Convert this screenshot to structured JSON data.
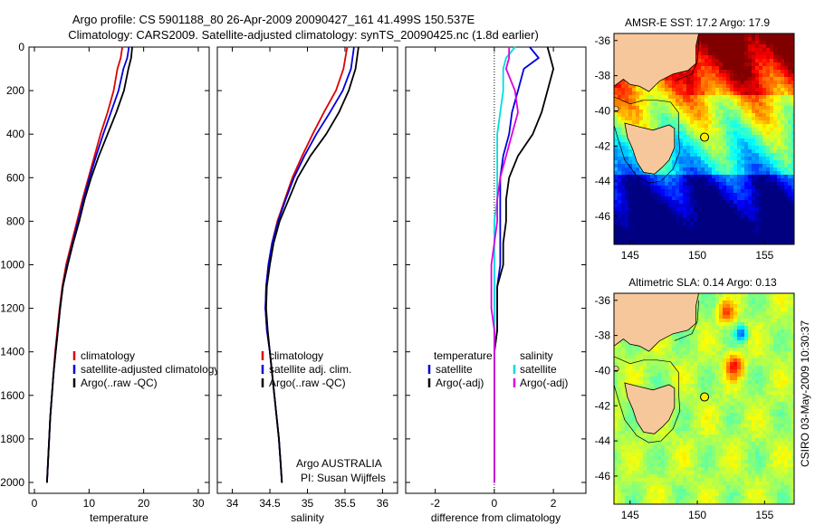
{
  "header": {
    "line1": "Argo profile: CS 5901188_80 26-Apr-2009 20090427_161 41.499S 150.537E",
    "line2": "Climatology: CARS2009. Satellite-adjusted climatology: synTS_20090425.nc (1.8d earlier)"
  },
  "side_text": "CSIRO 03-May-2009 10:30:37",
  "chart_data": [
    {
      "id": "temperature",
      "type": "line",
      "xlabel": "temperature",
      "xlim": [
        -1,
        32
      ],
      "ylim": [
        2050,
        0
      ],
      "xticks": [
        0,
        10,
        20,
        30
      ],
      "yticks": [
        0,
        200,
        400,
        600,
        800,
        1000,
        1200,
        1400,
        1600,
        1800,
        2000
      ],
      "legend": {
        "placement": "lower-middle",
        "entries": [
          "climatology",
          "satellite-adjusted climatology",
          "Argo(..raw -QC)"
        ]
      },
      "series": [
        {
          "name": "climatology",
          "color": "#dd0000",
          "points": [
            [
              16.1,
              0
            ],
            [
              15.8,
              50
            ],
            [
              15.2,
              100
            ],
            [
              14.5,
              200
            ],
            [
              13.4,
              300
            ],
            [
              12.1,
              400
            ],
            [
              11.0,
              500
            ],
            [
              9.9,
              600
            ],
            [
              8.8,
              700
            ],
            [
              7.8,
              800
            ],
            [
              6.8,
              900
            ],
            [
              5.8,
              1000
            ],
            [
              5.1,
              1100
            ],
            [
              4.6,
              1200
            ],
            [
              4.2,
              1300
            ],
            [
              3.8,
              1400
            ],
            [
              3.5,
              1500
            ],
            [
              3.2,
              1600
            ],
            [
              2.9,
              1700
            ],
            [
              2.7,
              1800
            ],
            [
              2.5,
              1900
            ],
            [
              2.3,
              2000
            ]
          ]
        },
        {
          "name": "satellite-adjusted climatology",
          "color": "#0000dd",
          "points": [
            [
              17.3,
              0
            ],
            [
              17.0,
              50
            ],
            [
              16.3,
              100
            ],
            [
              15.4,
              200
            ],
            [
              14.0,
              300
            ],
            [
              12.6,
              400
            ],
            [
              11.3,
              500
            ],
            [
              10.1,
              600
            ],
            [
              9.0,
              700
            ],
            [
              8.0,
              800
            ],
            [
              7.0,
              900
            ],
            [
              6.0,
              1000
            ],
            [
              5.2,
              1100
            ],
            [
              4.7,
              1200
            ],
            [
              4.3,
              1300
            ],
            [
              3.9,
              1400
            ],
            [
              3.5,
              1500
            ],
            [
              3.2,
              1600
            ],
            [
              2.9,
              1700
            ],
            [
              2.7,
              1800
            ],
            [
              2.5,
              1900
            ],
            [
              2.3,
              2000
            ]
          ]
        },
        {
          "name": "Argo(..raw -QC)",
          "color": "#000000",
          "points": [
            [
              17.9,
              0
            ],
            [
              17.7,
              50
            ],
            [
              17.2,
              100
            ],
            [
              16.4,
              200
            ],
            [
              15.0,
              300
            ],
            [
              13.4,
              400
            ],
            [
              11.8,
              500
            ],
            [
              10.4,
              600
            ],
            [
              9.2,
              700
            ],
            [
              8.2,
              800
            ],
            [
              7.1,
              900
            ],
            [
              6.1,
              1000
            ],
            [
              5.2,
              1100
            ],
            [
              4.7,
              1200
            ],
            [
              4.3,
              1300
            ],
            [
              3.9,
              1400
            ],
            [
              3.5,
              1500
            ],
            [
              3.2,
              1600
            ],
            [
              2.9,
              1700
            ],
            [
              2.7,
              1800
            ],
            [
              2.5,
              1900
            ],
            [
              2.3,
              2000
            ]
          ]
        }
      ]
    },
    {
      "id": "salinity",
      "type": "line",
      "xlabel": "salinity",
      "xlim": [
        33.8,
        36.2
      ],
      "ylim": [
        2050,
        0
      ],
      "xticks": [
        34,
        34.5,
        35,
        35.5,
        36
      ],
      "yticks": [
        0,
        200,
        400,
        600,
        800,
        1000,
        1200,
        1400,
        1600,
        1800,
        2000
      ],
      "legend": {
        "placement": "lower-middle",
        "entries": [
          "climatology",
          "satellite adj. clim.",
          "Argo(..raw -QC)"
        ]
      },
      "annotation": {
        "line1": "Argo AUSTRALIA",
        "line2": "PI: Susan Wijffels"
      },
      "series": [
        {
          "name": "climatology",
          "color": "#dd0000",
          "points": [
            [
              35.53,
              0
            ],
            [
              35.48,
              100
            ],
            [
              35.38,
              200
            ],
            [
              35.22,
              300
            ],
            [
              35.07,
              400
            ],
            [
              34.93,
              500
            ],
            [
              34.8,
              600
            ],
            [
              34.7,
              700
            ],
            [
              34.6,
              800
            ],
            [
              34.53,
              900
            ],
            [
              34.48,
              1000
            ],
            [
              34.45,
              1100
            ],
            [
              34.44,
              1200
            ],
            [
              34.46,
              1300
            ],
            [
              34.5,
              1400
            ],
            [
              34.53,
              1500
            ],
            [
              34.56,
              1600
            ],
            [
              34.59,
              1700
            ],
            [
              34.62,
              1800
            ],
            [
              34.64,
              1900
            ],
            [
              34.66,
              2000
            ]
          ]
        },
        {
          "name": "satellite adj. clim.",
          "color": "#0000dd",
          "points": [
            [
              35.62,
              0
            ],
            [
              35.58,
              100
            ],
            [
              35.47,
              200
            ],
            [
              35.3,
              300
            ],
            [
              35.12,
              400
            ],
            [
              34.96,
              500
            ],
            [
              34.82,
              600
            ],
            [
              34.71,
              700
            ],
            [
              34.61,
              800
            ],
            [
              34.53,
              900
            ],
            [
              34.48,
              1000
            ],
            [
              34.45,
              1100
            ],
            [
              34.44,
              1200
            ],
            [
              34.46,
              1300
            ],
            [
              34.5,
              1400
            ],
            [
              34.53,
              1500
            ],
            [
              34.56,
              1600
            ],
            [
              34.59,
              1700
            ],
            [
              34.62,
              1800
            ],
            [
              34.64,
              1900
            ],
            [
              34.66,
              2000
            ]
          ]
        },
        {
          "name": "Argo(..raw -QC)",
          "color": "#000000",
          "points": [
            [
              35.68,
              0
            ],
            [
              35.64,
              100
            ],
            [
              35.55,
              200
            ],
            [
              35.42,
              300
            ],
            [
              35.25,
              400
            ],
            [
              35.04,
              500
            ],
            [
              34.87,
              600
            ],
            [
              34.75,
              700
            ],
            [
              34.63,
              800
            ],
            [
              34.55,
              900
            ],
            [
              34.5,
              1000
            ],
            [
              34.46,
              1100
            ],
            [
              34.45,
              1200
            ],
            [
              34.47,
              1300
            ],
            [
              34.5,
              1400
            ],
            [
              34.53,
              1500
            ],
            [
              34.56,
              1600
            ],
            [
              34.59,
              1700
            ],
            [
              34.62,
              1800
            ],
            [
              34.64,
              1900
            ],
            [
              34.66,
              2000
            ]
          ]
        }
      ]
    },
    {
      "id": "difference",
      "type": "line",
      "xlabel": "difference from climatology",
      "xlim": [
        -3,
        3.1
      ],
      "ylim": [
        2050,
        0
      ],
      "xticks": [
        -2,
        0,
        2
      ],
      "yticks": [
        0,
        200,
        400,
        600,
        800,
        1000,
        1200,
        1400,
        1600,
        1800,
        2000
      ],
      "legend": {
        "placement": "lower-middle",
        "temp_title": "temperature",
        "sal_title": "salinity",
        "temp_entries": [
          "satellite",
          "Argo(-adj)"
        ],
        "sal_entries": [
          "satellite",
          "Argo(-adj)"
        ]
      },
      "series": [
        {
          "name": "temperature satellite",
          "color": "#0000dd",
          "points": [
            [
              1.2,
              0
            ],
            [
              1.5,
              50
            ],
            [
              1.0,
              100
            ],
            [
              0.8,
              200
            ],
            [
              0.6,
              300
            ],
            [
              0.5,
              400
            ],
            [
              0.3,
              500
            ],
            [
              0.2,
              600
            ],
            [
              0.2,
              700
            ],
            [
              0.2,
              800
            ],
            [
              0.2,
              900
            ],
            [
              0.2,
              1000
            ],
            [
              0.1,
              1100
            ],
            [
              0.1,
              1200
            ],
            [
              0.1,
              1300
            ],
            [
              0.0,
              1400
            ],
            [
              0.0,
              1600
            ],
            [
              0.0,
              2000
            ]
          ]
        },
        {
          "name": "temperature Argo(-adj)",
          "color": "#000000",
          "points": [
            [
              1.8,
              0
            ],
            [
              1.9,
              50
            ],
            [
              2.0,
              100
            ],
            [
              1.8,
              200
            ],
            [
              1.6,
              300
            ],
            [
              1.3,
              400
            ],
            [
              0.8,
              500
            ],
            [
              0.5,
              600
            ],
            [
              0.4,
              700
            ],
            [
              0.4,
              800
            ],
            [
              0.3,
              900
            ],
            [
              0.3,
              1000
            ],
            [
              0.1,
              1100
            ],
            [
              0.1,
              1200
            ],
            [
              0.1,
              1300
            ],
            [
              0.0,
              1400
            ],
            [
              0.0,
              1600
            ],
            [
              0.0,
              2000
            ]
          ]
        },
        {
          "name": "salinity satellite",
          "color": "#00dddd",
          "points": [
            [
              0.7,
              0
            ],
            [
              0.4,
              50
            ],
            [
              0.3,
              100
            ],
            [
              0.3,
              200
            ],
            [
              0.2,
              300
            ],
            [
              0.1,
              400
            ],
            [
              0.1,
              500
            ],
            [
              0.1,
              600
            ],
            [
              0.1,
              700
            ],
            [
              0.0,
              800
            ],
            [
              0.0,
              900
            ],
            [
              0.0,
              1000
            ],
            [
              0.0,
              1200
            ],
            [
              0.0,
              1600
            ],
            [
              0.0,
              2000
            ]
          ]
        },
        {
          "name": "salinity Argo(-adj)",
          "color": "#dd00dd",
          "points": [
            [
              0.5,
              0
            ],
            [
              0.5,
              50
            ],
            [
              0.4,
              100
            ],
            [
              0.7,
              200
            ],
            [
              0.8,
              300
            ],
            [
              0.6,
              400
            ],
            [
              0.4,
              500
            ],
            [
              0.2,
              600
            ],
            [
              0.1,
              700
            ],
            [
              0.1,
              800
            ],
            [
              0.0,
              900
            ],
            [
              -0.1,
              1000
            ],
            [
              -0.1,
              1100
            ],
            [
              -0.1,
              1200
            ],
            [
              0.0,
              1300
            ],
            [
              0.0,
              1600
            ],
            [
              0.0,
              2000
            ]
          ]
        }
      ]
    },
    {
      "id": "sst_map",
      "type": "heatmap",
      "title": "AMSR-E SST: 17.2 Argo: 17.9",
      "xlim": [
        143.8,
        157.2
      ],
      "ylim": [
        -47.6,
        -35.6
      ],
      "xticks": [
        145,
        150,
        155
      ],
      "yticks": [
        -36,
        -38,
        -40,
        -42,
        -44,
        -46
      ],
      "argo_position": [
        150.537,
        -41.499
      ]
    },
    {
      "id": "sla_map",
      "type": "heatmap",
      "title": "Altimetric SLA: 0.14 Argo: 0.13",
      "xlim": [
        143.8,
        157.2
      ],
      "ylim": [
        -47.6,
        -35.6
      ],
      "xticks": [
        145,
        150,
        155
      ],
      "yticks": [
        -36,
        -38,
        -40,
        -42,
        -44,
        -46
      ],
      "argo_position": [
        150.537,
        -41.499
      ]
    }
  ]
}
